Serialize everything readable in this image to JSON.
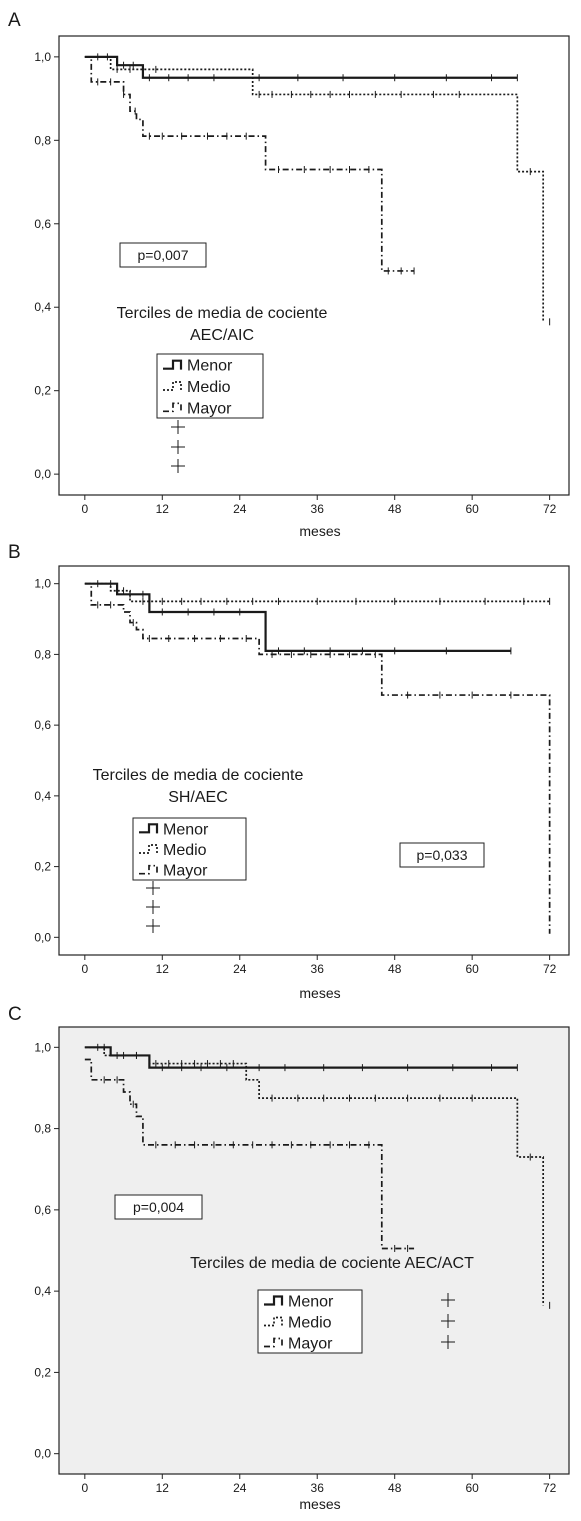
{
  "chart_data": [
    {
      "type": "line",
      "panel_label": "A",
      "xlabel": "meses",
      "ylabel": "",
      "xlim": [
        -4,
        75
      ],
      "ylim": [
        -0.05,
        1.05
      ],
      "x_ticks": [
        0,
        12,
        24,
        36,
        48,
        60,
        72
      ],
      "x_tick_labels": [
        "0",
        "12",
        "24",
        "36",
        "48",
        "60",
        "72"
      ],
      "y_ticks": [
        0.0,
        0.2,
        0.4,
        0.6,
        0.8,
        1.0
      ],
      "y_tick_labels": [
        "0,0",
        "0,2",
        "0,4",
        "0,6",
        "0,8",
        "1,0"
      ],
      "background": "#ffffff",
      "p_value": "p=0,007",
      "legend_title": "Terciles de media de cociente AEC/AIC",
      "legend_title_lines": [
        "Terciles de media de cociente",
        "AEC/AIC"
      ],
      "series": [
        {
          "name": "Menor",
          "style": "solid",
          "x": [
            0,
            5,
            9,
            67
          ],
          "y": [
            1.0,
            0.98,
            0.95,
            0.95
          ],
          "censored": [
            [
              2,
              1.0
            ],
            [
              3.5,
              1.0
            ],
            [
              6,
              0.98
            ],
            [
              7.5,
              0.98
            ],
            [
              10,
              0.95
            ],
            [
              13,
              0.95
            ],
            [
              16,
              0.95
            ],
            [
              20,
              0.95
            ],
            [
              27,
              0.95
            ],
            [
              33,
              0.95
            ],
            [
              40,
              0.95
            ],
            [
              48,
              0.95
            ],
            [
              56,
              0.95
            ],
            [
              63,
              0.95
            ],
            [
              67,
              0.95
            ]
          ]
        },
        {
          "name": "Medio",
          "style": "dotted",
          "x": [
            0,
            4,
            26,
            67,
            71
          ],
          "y": [
            1.0,
            0.97,
            0.91,
            0.725,
            0.365
          ],
          "censored": [
            [
              5,
              0.97
            ],
            [
              7,
              0.97
            ],
            [
              9,
              0.97
            ],
            [
              11,
              0.97
            ],
            [
              27,
              0.91
            ],
            [
              29,
              0.91
            ],
            [
              32,
              0.91
            ],
            [
              35,
              0.91
            ],
            [
              38,
              0.91
            ],
            [
              41,
              0.91
            ],
            [
              45,
              0.91
            ],
            [
              49,
              0.91
            ],
            [
              54,
              0.91
            ],
            [
              58,
              0.91
            ],
            [
              69,
              0.725
            ],
            [
              72,
              0.365
            ]
          ]
        },
        {
          "name": "Mayor",
          "style": "dashdot",
          "x": [
            0,
            1,
            6,
            7,
            8,
            9,
            28,
            46,
            51
          ],
          "y": [
            1.0,
            0.94,
            0.91,
            0.87,
            0.85,
            0.81,
            0.73,
            0.487,
            0.487
          ],
          "censored": [
            [
              2,
              0.94
            ],
            [
              4,
              0.94
            ],
            [
              6,
              0.91
            ],
            [
              7.8,
              0.87
            ],
            [
              10,
              0.81
            ],
            [
              12,
              0.81
            ],
            [
              15,
              0.81
            ],
            [
              19,
              0.81
            ],
            [
              22,
              0.81
            ],
            [
              25,
              0.81
            ],
            [
              30,
              0.73
            ],
            [
              34,
              0.73
            ],
            [
              38,
              0.73
            ],
            [
              41,
              0.73
            ],
            [
              44,
              0.73
            ],
            [
              47,
              0.487
            ],
            [
              49,
              0.487
            ],
            [
              51,
              0.487
            ]
          ]
        }
      ]
    },
    {
      "type": "line",
      "panel_label": "B",
      "xlabel": "meses",
      "ylabel": "",
      "xlim": [
        -4,
        75
      ],
      "ylim": [
        -0.05,
        1.05
      ],
      "x_ticks": [
        0,
        12,
        24,
        36,
        48,
        60,
        72
      ],
      "x_tick_labels": [
        "0",
        "12",
        "24",
        "36",
        "48",
        "60",
        "72"
      ],
      "y_ticks": [
        0.0,
        0.2,
        0.4,
        0.6,
        0.8,
        1.0
      ],
      "y_tick_labels": [
        "0,0",
        "0,2",
        "0,4",
        "0,6",
        "0,8",
        "1,0"
      ],
      "background": "#ffffff",
      "p_value": "p=0,033",
      "legend_title": "Terciles de media de cociente SH/AEC",
      "legend_title_lines": [
        "Terciles de media de cociente",
        "SH/AEC"
      ],
      "series": [
        {
          "name": "Menor",
          "style": "solid",
          "x": [
            0,
            5,
            10,
            28,
            66
          ],
          "y": [
            1.0,
            0.97,
            0.92,
            0.81,
            0.81
          ],
          "censored": [
            [
              2,
              1.0
            ],
            [
              4,
              1.0
            ],
            [
              7,
              0.97
            ],
            [
              9,
              0.97
            ],
            [
              12,
              0.92
            ],
            [
              16,
              0.92
            ],
            [
              20,
              0.92
            ],
            [
              24,
              0.92
            ],
            [
              30,
              0.81
            ],
            [
              34,
              0.81
            ],
            [
              38,
              0.81
            ],
            [
              43,
              0.81
            ],
            [
              48,
              0.81
            ],
            [
              56,
              0.81
            ],
            [
              66,
              0.81
            ]
          ]
        },
        {
          "name": "Medio",
          "style": "dotted",
          "x": [
            0,
            4,
            7,
            72
          ],
          "y": [
            1.0,
            0.98,
            0.95,
            0.95
          ],
          "censored": [
            [
              6,
              0.98
            ],
            [
              9,
              0.95
            ],
            [
              12,
              0.95
            ],
            [
              15,
              0.95
            ],
            [
              18,
              0.95
            ],
            [
              22,
              0.95
            ],
            [
              26,
              0.95
            ],
            [
              30,
              0.95
            ],
            [
              36,
              0.95
            ],
            [
              42,
              0.95
            ],
            [
              48,
              0.95
            ],
            [
              55,
              0.95
            ],
            [
              62,
              0.95
            ],
            [
              68,
              0.95
            ],
            [
              72,
              0.95
            ]
          ]
        },
        {
          "name": "Mayor",
          "style": "dashdot",
          "x": [
            0,
            1,
            6,
            7,
            8,
            9,
            27,
            46,
            72
          ],
          "y": [
            1.0,
            0.94,
            0.92,
            0.89,
            0.87,
            0.845,
            0.8,
            0.685,
            0.01
          ],
          "censored": [
            [
              2,
              0.94
            ],
            [
              4,
              0.94
            ],
            [
              7.5,
              0.89
            ],
            [
              10,
              0.845
            ],
            [
              13,
              0.845
            ],
            [
              17,
              0.845
            ],
            [
              21,
              0.845
            ],
            [
              25,
              0.845
            ],
            [
              29,
              0.8
            ],
            [
              32,
              0.8
            ],
            [
              35,
              0.8
            ],
            [
              38,
              0.8
            ],
            [
              41,
              0.8
            ],
            [
              45,
              0.8
            ],
            [
              50,
              0.685
            ],
            [
              55,
              0.685
            ],
            [
              60,
              0.685
            ],
            [
              66,
              0.685
            ]
          ]
        }
      ]
    },
    {
      "type": "line",
      "panel_label": "C",
      "xlabel": "meses",
      "ylabel": "",
      "xlim": [
        -4,
        75
      ],
      "ylim": [
        -0.05,
        1.05
      ],
      "x_ticks": [
        0,
        12,
        24,
        36,
        48,
        60,
        72
      ],
      "x_tick_labels": [
        "0",
        "12",
        "24",
        "36",
        "48",
        "60",
        "72"
      ],
      "y_ticks": [
        0.0,
        0.2,
        0.4,
        0.6,
        0.8,
        1.0
      ],
      "y_tick_labels": [
        "0,0",
        "0,2",
        "0,4",
        "0,6",
        "0,8",
        "1,0"
      ],
      "background": "#efefef",
      "p_value": "p=0,004",
      "legend_title": "Terciles de media de cociente AEC/ACT",
      "legend_title_lines": [
        "Terciles de media de cociente AEC/ACT"
      ],
      "series": [
        {
          "name": "Menor",
          "style": "solid",
          "x": [
            0,
            4,
            10,
            67
          ],
          "y": [
            1.0,
            0.98,
            0.95,
            0.95
          ],
          "censored": [
            [
              2,
              1.0
            ],
            [
              3,
              1.0
            ],
            [
              6,
              0.98
            ],
            [
              8,
              0.98
            ],
            [
              12,
              0.95
            ],
            [
              15,
              0.95
            ],
            [
              18,
              0.95
            ],
            [
              22,
              0.95
            ],
            [
              27,
              0.95
            ],
            [
              31,
              0.95
            ],
            [
              37,
              0.95
            ],
            [
              43,
              0.95
            ],
            [
              50,
              0.95
            ],
            [
              57,
              0.95
            ],
            [
              63,
              0.95
            ],
            [
              67,
              0.95
            ]
          ]
        },
        {
          "name": "Medio",
          "style": "dotted",
          "x": [
            0,
            3,
            10,
            25,
            27,
            67,
            71
          ],
          "y": [
            1.0,
            0.98,
            0.96,
            0.92,
            0.875,
            0.73,
            0.365
          ],
          "censored": [
            [
              5,
              0.98
            ],
            [
              8,
              0.98
            ],
            [
              11,
              0.96
            ],
            [
              13,
              0.96
            ],
            [
              15,
              0.96
            ],
            [
              17,
              0.96
            ],
            [
              19,
              0.96
            ],
            [
              21,
              0.96
            ],
            [
              23,
              0.96
            ],
            [
              29,
              0.875
            ],
            [
              33,
              0.875
            ],
            [
              37,
              0.875
            ],
            [
              41,
              0.875
            ],
            [
              45,
              0.875
            ],
            [
              50,
              0.875
            ],
            [
              55,
              0.875
            ],
            [
              60,
              0.875
            ],
            [
              69,
              0.73
            ],
            [
              72,
              0.365
            ]
          ]
        },
        {
          "name": "Mayor",
          "style": "dashdot",
          "x": [
            0,
            1,
            6,
            7,
            8,
            9,
            46,
            51
          ],
          "y": [
            0.97,
            0.92,
            0.89,
            0.86,
            0.83,
            0.76,
            0.505,
            0.505
          ],
          "censored": [
            [
              3,
              0.92
            ],
            [
              5,
              0.92
            ],
            [
              7.5,
              0.86
            ],
            [
              11,
              0.76
            ],
            [
              14,
              0.76
            ],
            [
              17,
              0.76
            ],
            [
              20,
              0.76
            ],
            [
              23,
              0.76
            ],
            [
              26,
              0.76
            ],
            [
              29,
              0.76
            ],
            [
              32,
              0.76
            ],
            [
              35,
              0.76
            ],
            [
              38,
              0.76
            ],
            [
              41,
              0.76
            ],
            [
              44,
              0.76
            ],
            [
              48,
              0.505
            ],
            [
              50,
              0.505
            ]
          ]
        }
      ]
    }
  ]
}
